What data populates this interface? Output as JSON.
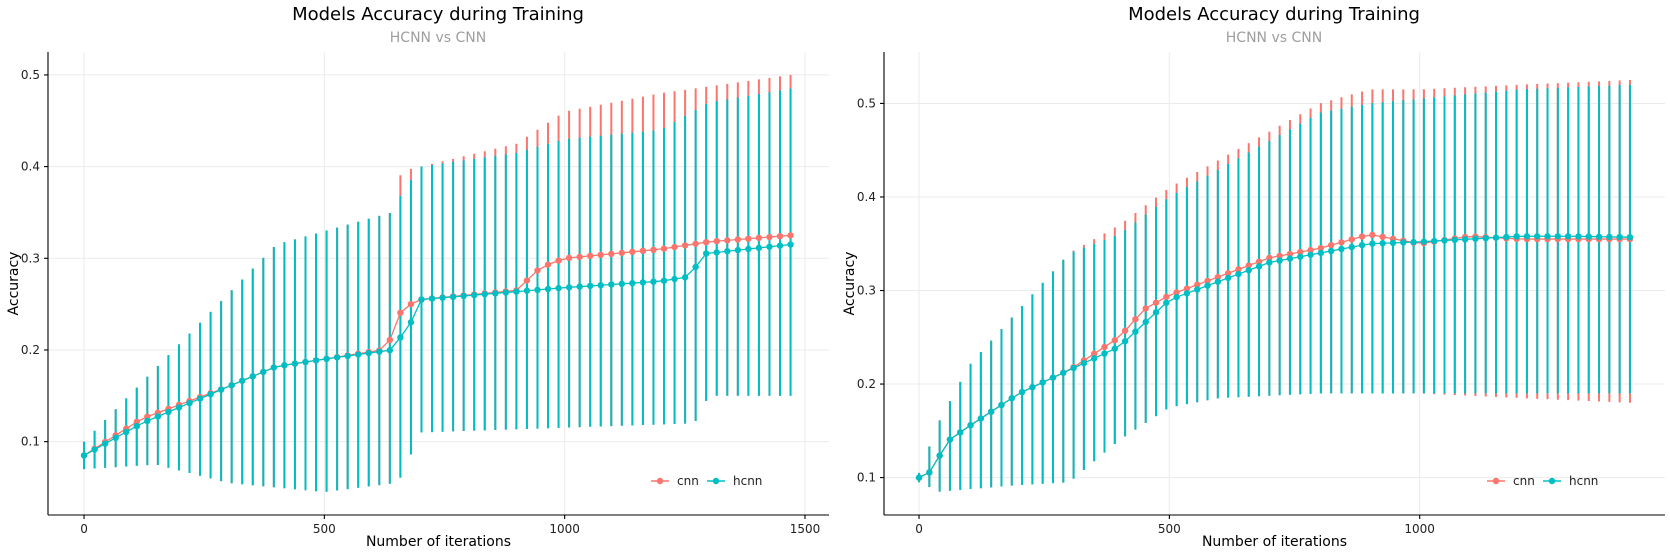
{
  "colors": {
    "cnn": "#f8766d",
    "hcnn": "#00bfc4",
    "grid": "#ebebeb",
    "subtitle": "#9e9e9e"
  },
  "chart_data": [
    {
      "type": "line",
      "title": "Models Accuracy during Training",
      "subtitle": "HCNN vs CNN",
      "xlabel": "Number of iterations",
      "ylabel": "Accuracy",
      "xlim": [
        -75,
        1550
      ],
      "ylim": [
        0.02,
        0.525
      ],
      "xticks": [
        0,
        500,
        1000,
        1500
      ],
      "yticks": [
        0.1,
        0.2,
        0.3,
        0.4,
        0.5
      ],
      "xtick_labels": [
        "0",
        "500",
        "1000",
        "1500"
      ],
      "ytick_labels": [
        "0.1",
        "0.2",
        "0.3",
        "0.4",
        "0.5"
      ],
      "grid": true,
      "error_bars": true,
      "legend_position": "bottom-right",
      "x_range": [
        0,
        1470
      ],
      "n_points": 68,
      "series": [
        {
          "name": "cnn",
          "mean_knots": [
            [
              0,
              0.085
            ],
            [
              120,
              0.125
            ],
            [
              300,
              0.16
            ],
            [
              400,
              0.182
            ],
            [
              500,
              0.19
            ],
            [
              620,
              0.2
            ],
            [
              650,
              0.22
            ],
            [
              660,
              0.245
            ],
            [
              680,
              0.25
            ],
            [
              700,
              0.255
            ],
            [
              900,
              0.265
            ],
            [
              950,
              0.29
            ],
            [
              1000,
              0.3
            ],
            [
              1100,
              0.305
            ],
            [
              1200,
              0.31
            ],
            [
              1300,
              0.318
            ],
            [
              1470,
              0.325
            ]
          ],
          "upper_knots": [
            [
              0,
              0.1
            ],
            [
              400,
              0.315
            ],
            [
              640,
              0.35
            ],
            [
              650,
              0.37
            ],
            [
              660,
              0.395
            ],
            [
              700,
              0.4
            ],
            [
              900,
              0.425
            ],
            [
              1000,
              0.46
            ],
            [
              1200,
              0.48
            ],
            [
              1470,
              0.5
            ]
          ],
          "lower_knots": [
            [
              0,
              0.07
            ],
            [
              150,
              0.075
            ],
            [
              300,
              0.055
            ],
            [
              500,
              0.045
            ],
            [
              650,
              0.055
            ],
            [
              660,
              0.062
            ],
            [
              700,
              0.11
            ],
            [
              1270,
              0.12
            ],
            [
              1300,
              0.15
            ],
            [
              1470,
              0.15
            ]
          ]
        },
        {
          "name": "hcnn",
          "mean_knots": [
            [
              0,
              0.085
            ],
            [
              120,
              0.12
            ],
            [
              300,
              0.16
            ],
            [
              400,
              0.182
            ],
            [
              500,
              0.19
            ],
            [
              640,
              0.2
            ],
            [
              680,
              0.23
            ],
            [
              700,
              0.255
            ],
            [
              1000,
              0.268
            ],
            [
              1200,
              0.275
            ],
            [
              1260,
              0.28
            ],
            [
              1290,
              0.305
            ],
            [
              1470,
              0.315
            ]
          ],
          "upper_knots": [
            [
              0,
              0.1
            ],
            [
              400,
              0.315
            ],
            [
              640,
              0.35
            ],
            [
              660,
              0.37
            ],
            [
              700,
              0.4
            ],
            [
              900,
              0.415
            ],
            [
              1000,
              0.43
            ],
            [
              1200,
              0.44
            ],
            [
              1300,
              0.47
            ],
            [
              1470,
              0.485
            ]
          ],
          "lower_knots": [
            [
              0,
              0.07
            ],
            [
              150,
              0.075
            ],
            [
              300,
              0.055
            ],
            [
              500,
              0.045
            ],
            [
              650,
              0.055
            ],
            [
              660,
              0.062
            ],
            [
              700,
              0.11
            ],
            [
              1270,
              0.12
            ],
            [
              1300,
              0.15
            ],
            [
              1470,
              0.15
            ]
          ]
        }
      ]
    },
    {
      "type": "line",
      "title": "Models Accuracy during Training",
      "subtitle": "HCNN vs CNN",
      "xlabel": "Number of iterations",
      "ylabel": "Accuracy",
      "xlim": [
        -70,
        1490
      ],
      "ylim": [
        0.06,
        0.555
      ],
      "xticks": [
        0,
        500,
        1000
      ],
      "yticks": [
        0.1,
        0.2,
        0.3,
        0.4,
        0.5
      ],
      "xtick_labels": [
        "0",
        "500",
        "1000"
      ],
      "ytick_labels": [
        "0.1",
        "0.2",
        "0.3",
        "0.4",
        "0.5"
      ],
      "grid": true,
      "error_bars": true,
      "legend_position": "bottom-right",
      "x_range": [
        0,
        1420
      ],
      "n_points": 70,
      "series": [
        {
          "name": "cnn",
          "mean_knots": [
            [
              0,
              0.1
            ],
            [
              20,
              0.105
            ],
            [
              60,
              0.14
            ],
            [
              100,
              0.155
            ],
            [
              200,
              0.19
            ],
            [
              300,
              0.215
            ],
            [
              400,
              0.25
            ],
            [
              450,
              0.28
            ],
            [
              500,
              0.295
            ],
            [
              600,
              0.315
            ],
            [
              700,
              0.335
            ],
            [
              800,
              0.345
            ],
            [
              900,
              0.36
            ],
            [
              1000,
              0.35
            ],
            [
              1100,
              0.358
            ],
            [
              1200,
              0.355
            ],
            [
              1300,
              0.355
            ],
            [
              1420,
              0.355
            ]
          ],
          "upper_knots": [
            [
              0,
              0.105
            ],
            [
              40,
              0.16
            ],
            [
              100,
              0.22
            ],
            [
              200,
              0.28
            ],
            [
              300,
              0.34
            ],
            [
              400,
              0.37
            ],
            [
              500,
              0.41
            ],
            [
              600,
              0.44
            ],
            [
              700,
              0.47
            ],
            [
              800,
              0.5
            ],
            [
              900,
              0.515
            ],
            [
              1000,
              0.515
            ],
            [
              1200,
              0.52
            ],
            [
              1420,
              0.525
            ]
          ],
          "lower_knots": [
            [
              0,
              0.095
            ],
            [
              40,
              0.085
            ],
            [
              200,
              0.092
            ],
            [
              300,
              0.095
            ],
            [
              400,
              0.14
            ],
            [
              500,
              0.175
            ],
            [
              600,
              0.185
            ],
            [
              800,
              0.19
            ],
            [
              1000,
              0.19
            ],
            [
              1200,
              0.185
            ],
            [
              1420,
              0.18
            ]
          ]
        },
        {
          "name": "hcnn",
          "mean_knots": [
            [
              0,
              0.1
            ],
            [
              20,
              0.105
            ],
            [
              60,
              0.14
            ],
            [
              100,
              0.155
            ],
            [
              200,
              0.19
            ],
            [
              300,
              0.215
            ],
            [
              400,
              0.24
            ],
            [
              450,
              0.265
            ],
            [
              500,
              0.29
            ],
            [
              600,
              0.31
            ],
            [
              700,
              0.33
            ],
            [
              800,
              0.34
            ],
            [
              900,
              0.35
            ],
            [
              1000,
              0.352
            ],
            [
              1100,
              0.355
            ],
            [
              1200,
              0.358
            ],
            [
              1300,
              0.358
            ],
            [
              1420,
              0.357
            ]
          ],
          "upper_knots": [
            [
              0,
              0.105
            ],
            [
              40,
              0.16
            ],
            [
              100,
              0.22
            ],
            [
              200,
              0.28
            ],
            [
              300,
              0.34
            ],
            [
              400,
              0.36
            ],
            [
              500,
              0.4
            ],
            [
              600,
              0.43
            ],
            [
              700,
              0.46
            ],
            [
              800,
              0.49
            ],
            [
              900,
              0.5
            ],
            [
              1000,
              0.505
            ],
            [
              1200,
              0.515
            ],
            [
              1420,
              0.52
            ]
          ],
          "lower_knots": [
            [
              0,
              0.095
            ],
            [
              40,
              0.085
            ],
            [
              200,
              0.092
            ],
            [
              300,
              0.095
            ],
            [
              400,
              0.14
            ],
            [
              500,
              0.175
            ],
            [
              600,
              0.185
            ],
            [
              800,
              0.19
            ],
            [
              1000,
              0.19
            ],
            [
              1200,
              0.19
            ],
            [
              1420,
              0.19
            ]
          ]
        }
      ]
    }
  ]
}
